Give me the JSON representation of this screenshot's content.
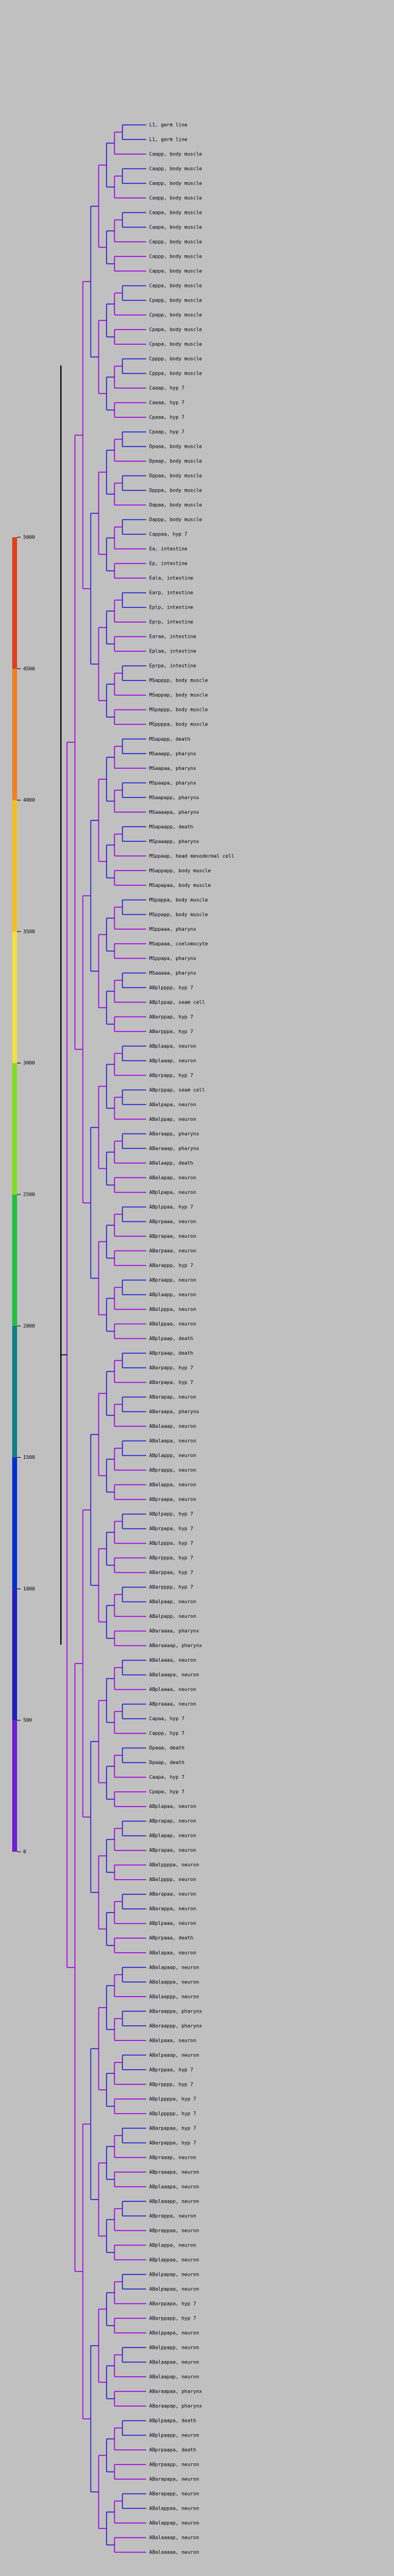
{
  "colorbar": {
    "ticks": [
      0,
      500,
      1000,
      1500,
      2000,
      2500,
      3000,
      3500,
      4000,
      4500,
      5000
    ],
    "colors": [
      "#b000e0",
      "#7020d0",
      "#2020c0",
      "#0030d0",
      "#108080",
      "#20c040",
      "#80e020",
      "#f0e040",
      "#f0c020",
      "#f08020",
      "#e04020"
    ]
  },
  "leaves": [
    "L1, germ line",
    "L1, germ line",
    "Caapp, body muscle",
    "Caapp, body muscle",
    "Caapp, body muscle",
    "Caapp, body muscle",
    "Caapa, body muscle",
    "Caapa, body muscle",
    "Cappp, body muscle",
    "Cappp, body muscle",
    "Cappa, body muscle",
    "Cappa, body muscle",
    "Cpapp, body muscle",
    "Cpapp, body muscle",
    "Cpapa, body muscle",
    "Cpapa, body muscle",
    "Cpppp, body muscle",
    "Cpppa, body muscle",
    "Caaap, hyp 7",
    "Caaaa, hyp 7",
    "Cpaaa, hyp 7",
    "Cpaap, hyp 7",
    "Dpaaa, body muscle",
    "Dpaap, body muscle",
    "Dppaa, body muscle",
    "Dpppa, body muscle",
    "Dapaa, body muscle",
    "Dappp, body muscle",
    "Cappaa, hyp 7",
    "Ea, intestine",
    "Ep, intestine",
    "Eala, intestine",
    "Earp, intestine",
    "Eplp, intestine",
    "Eprp, intestine",
    "Earaa, intestine",
    "Eplaa, intestine",
    "Eprpa, intestine",
    "MSapppp, body muscle",
    "MSappap, body muscle",
    "MSpappp, body muscle",
    "MSppppa, body muscle",
    "MSapapp, death",
    "MSaaapp, pharynx",
    "MSaapaa, pharynx",
    "MSpaapa, pharynx",
    "MSaapapp, pharynx",
    "MSaaaapa, pharynx",
    "MSapaapp, death",
    "MSpaaapp, pharynx",
    "MSppaap, head mesodermal cell",
    "MSappapp, body muscle",
    "MSapapaa, body muscle",
    "MSpappa, body muscle",
    "MSppapp, body muscle",
    "MSppaaa, pharynx",
    "MSapaaa, coelomocyte",
    "MSppapa, pharynx",
    "MSaaaaa, pharynx",
    "ABplpppp, hyp 7",
    "ABplppap, seam cell",
    "ABarppap, hyp 7",
    "ABarpppa, hyp 7",
    "ABplaapa, neuron",
    "ABplaaap, neuron",
    "ABprpapp, hyp 7",
    "ABprppap, seam cell",
    "ABalpapa, neuron",
    "ABalppap, neuron",
    "ABaraapp, pharynx",
    "ABaraaap, pharynx",
    "ABalaapp, death",
    "ABalapap, neuron",
    "ABplpapa, neuron",
    "ABplppaa, hyp 7",
    "ABprpaaa, neuron",
    "ABprapaa, neuron",
    "ABarpaaa, neuron",
    "ABarappp, hyp 7",
    "ABpraapp, neuron",
    "ABplaapp, neuron",
    "ABalpppa, neuron",
    "ABalppaa, neuron",
    "ABplpaap, death",
    "ABprpaap, death",
    "ABarpapp, hyp 7",
    "ABarpapa, hyp 7",
    "ABarapap, neuron",
    "ABaraapa, pharynx",
    "ABalaaap, neuron",
    "ABalaapa, neuron",
    "ABplappp, neuron",
    "ABprappp, neuron",
    "ABalappa, neuron",
    "ABpraapa, neuron",
    "ABplpapp, hyp 7",
    "ABprpapa, hyp 7",
    "ABplpppa, hyp 7",
    "ABprpppa, hyp 7",
    "ABarppaa, hyp 7",
    "ABarpppp, hyp 7",
    "ABalpaap, neuron",
    "ABalpapp, neuron",
    "ABaraaaa, pharynx",
    "ABaraaaap, pharynx",
    "ABalaaaa, neuron",
    "ABalaaapa, neuron",
    "ABplaaaa, neuron",
    "ABpraaaa, neuron",
    "Capaa, hyp 7",
    "Cappp, hyp 7",
    "Dpaaa, death",
    "Dpaap, death",
    "Caapa, hyp 7",
    "Cpapa, hyp 7",
    "ABplapaa, neuron",
    "ABprapap, neuron",
    "ABplapap, neuron",
    "ABprapaa, neuron",
    "ABalppppa, neuron",
    "ABalpppp, neuron",
    "ABarapaa, neuron",
    "ABarappa, neuron",
    "ABplpaaa, neuron",
    "ABprpaaa, death",
    "ABalapaa, neuron",
    "ABalapaap, neuron",
    "ABalaappa, neuron",
    "ABalaappp, neuron",
    "ABaraappa, pharynx",
    "ABaraappp, pharynx",
    "ABalpaaa, neuron",
    "ABalpaaap, neuron",
    "ABprppaa, hyp 7",
    "ABprpppp, hyp 7",
    "ABplppppa, hyp 7",
    "ABplppppp, hyp 7",
    "ABarpapaa, hyp 7",
    "ABarpappa, hyp 7",
    "ABpraaap, neuron",
    "ABpraaapa, neuron",
    "ABplaaapa, neuron",
    "ABplaaapp, neuron",
    "ABprappa, neuron",
    "ABprappaa, neuron",
    "ABplappa, neuron",
    "ABplappaa, neuron",
    "ABalpapap, neuron",
    "ABalpapaa, neuron",
    "ABarppapa, hyp 7",
    "ABarppapp, hyp 7",
    "ABalppapa, neuron",
    "ABalppapp, neuron",
    "ABalaapaa, neuron",
    "ABalaapap, neuron",
    "ABaraapaa, pharynx",
    "ABaraapap, pharynx",
    "ABplpaapa, death",
    "ABplpaapp, neuron",
    "ABprpaapa, death",
    "ABprpaapp, neuron",
    "ABarapapa, neuron",
    "ABarapapp, neuron",
    "ABalappaa, neuron",
    "ABalappap, neuron",
    "ABalaaaap, neuron",
    "ABalaaaaa, neuron"
  ]
}
